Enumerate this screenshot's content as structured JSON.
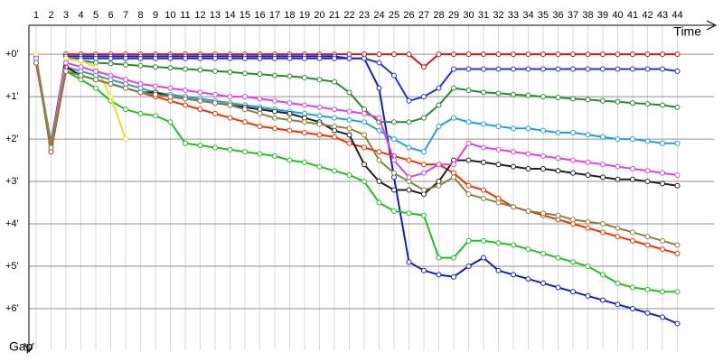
{
  "chart_data": {
    "type": "line",
    "x_label": "Time",
    "y_label": "Gap",
    "categories": [
      "1",
      "2",
      "3",
      "4",
      "5",
      "6",
      "7",
      "8",
      "9",
      "10",
      "11",
      "12",
      "13",
      "14",
      "15",
      "16",
      "17",
      "18",
      "19",
      "20",
      "21",
      "22",
      "23",
      "24",
      "25",
      "26",
      "27",
      "28",
      "29",
      "30",
      "31",
      "32",
      "33",
      "34",
      "35",
      "36",
      "37",
      "38",
      "39",
      "40",
      "41",
      "42",
      "43",
      "44"
    ],
    "ylim": [
      -0.3,
      7.0
    ],
    "yticks": [
      {
        "value": 0,
        "label": "+0'"
      },
      {
        "value": 1,
        "label": "+1'"
      },
      {
        "value": 2,
        "label": "+2'"
      },
      {
        "value": 3,
        "label": "+3'"
      },
      {
        "value": 4,
        "label": "+4'"
      },
      {
        "value": 5,
        "label": "+5'"
      },
      {
        "value": 6,
        "label": "+6'"
      }
    ],
    "grid": true,
    "series": [
      {
        "color": "#e01010",
        "values": [
          0.1,
          2.3,
          0,
          0,
          0,
          0,
          0,
          0,
          0,
          0,
          0,
          0,
          0,
          0,
          0,
          0,
          0,
          0,
          0,
          0,
          0,
          0,
          0,
          0,
          0,
          0,
          0.3,
          0,
          0,
          0,
          0,
          0,
          0,
          0,
          0,
          0,
          0,
          0,
          0,
          0,
          0,
          0,
          0,
          0
        ]
      },
      {
        "color": "#1020c0",
        "values": [
          0.2,
          2.1,
          0.05,
          0.05,
          0.05,
          0.05,
          0.05,
          0.05,
          0.05,
          0.05,
          0.05,
          0.05,
          0.05,
          0.05,
          0.05,
          0.05,
          0.05,
          0.05,
          0.05,
          0.05,
          0.05,
          0.1,
          0.1,
          0.8,
          2.9,
          4.9,
          5.1,
          5.2,
          5.25,
          5.0,
          4.8,
          5.1,
          5.2,
          5.3,
          5.4,
          5.5,
          5.6,
          5.7,
          5.8,
          5.9,
          6.0,
          6.1,
          6.2,
          6.35
        ]
      },
      {
        "color": "#2030e0",
        "values": [
          0.2,
          2.1,
          0.1,
          0.1,
          0.1,
          0.1,
          0.1,
          0.1,
          0.1,
          0.1,
          0.1,
          0.1,
          0.1,
          0.1,
          0.1,
          0.1,
          0.1,
          0.1,
          0.1,
          0.1,
          0.1,
          0.1,
          0.1,
          0.2,
          0.5,
          1.1,
          1.0,
          0.8,
          0.35,
          0.35,
          0.35,
          0.35,
          0.35,
          0.35,
          0.35,
          0.35,
          0.35,
          0.35,
          0.35,
          0.35,
          0.35,
          0.35,
          0.35,
          0.4
        ]
      },
      {
        "color": "#2a8a2a",
        "values": [
          0.1,
          2.2,
          0.1,
          0.15,
          0.2,
          0.22,
          0.25,
          0.27,
          0.3,
          0.32,
          0.35,
          0.37,
          0.4,
          0.42,
          0.45,
          0.47,
          0.5,
          0.52,
          0.55,
          0.6,
          0.65,
          0.9,
          1.3,
          1.6,
          1.6,
          1.6,
          1.5,
          1.2,
          0.8,
          0.85,
          0.9,
          0.92,
          0.95,
          0.97,
          1.0,
          1.02,
          1.05,
          1.07,
          1.1,
          1.12,
          1.15,
          1.17,
          1.2,
          1.25
        ]
      },
      {
        "color": "#20c020",
        "values": [
          0.05,
          2.1,
          0.4,
          0.6,
          0.8,
          1.1,
          1.3,
          1.4,
          1.45,
          1.6,
          2.1,
          2.15,
          2.2,
          2.25,
          2.3,
          2.35,
          2.4,
          2.5,
          2.55,
          2.65,
          2.75,
          2.85,
          3.0,
          3.5,
          3.7,
          3.75,
          3.8,
          4.8,
          4.8,
          4.4,
          4.4,
          4.45,
          4.5,
          4.6,
          4.7,
          4.8,
          4.9,
          5.0,
          5.2,
          5.4,
          5.5,
          5.55,
          5.6,
          5.6
        ]
      },
      {
        "color": "#f03000",
        "values": [
          0.1,
          2.3,
          0.4,
          0.5,
          0.6,
          0.7,
          0.8,
          0.9,
          1.0,
          1.1,
          1.2,
          1.3,
          1.4,
          1.5,
          1.6,
          1.7,
          1.75,
          1.8,
          1.85,
          1.9,
          1.95,
          2.1,
          2.2,
          2.3,
          2.4,
          2.5,
          2.6,
          2.6,
          2.8,
          3.1,
          3.2,
          3.4,
          3.6,
          3.7,
          3.8,
          3.9,
          4.0,
          4.1,
          4.2,
          4.3,
          4.4,
          4.5,
          4.6,
          4.7
        ]
      },
      {
        "color": "#e8e020",
        "values": [
          0,
          2.2,
          0.1,
          0.15,
          0.3,
          1.0,
          2.0,
          null,
          null,
          null,
          null,
          null,
          null,
          null,
          null,
          null,
          null,
          null,
          null,
          null,
          null,
          null,
          null,
          null,
          null,
          null,
          null,
          null,
          null,
          null,
          null,
          null,
          null,
          null,
          null,
          null,
          null,
          null,
          null,
          null,
          null,
          null,
          null,
          null
        ]
      },
      {
        "color": "#1ea0e0",
        "values": [
          0.1,
          2.2,
          0.3,
          0.4,
          0.5,
          0.6,
          0.7,
          0.8,
          0.9,
          0.95,
          1.0,
          1.05,
          1.1,
          1.15,
          1.2,
          1.25,
          1.3,
          1.35,
          1.4,
          1.45,
          1.5,
          1.55,
          1.6,
          1.8,
          2.0,
          2.2,
          2.3,
          1.7,
          1.5,
          1.6,
          1.65,
          1.7,
          1.75,
          1.75,
          1.8,
          1.85,
          1.85,
          1.9,
          1.95,
          2.0,
          2.0,
          2.05,
          2.1,
          2.1
        ]
      },
      {
        "color": "#202020",
        "values": [
          0.2,
          2.2,
          0.3,
          0.5,
          0.6,
          0.7,
          0.8,
          0.9,
          0.9,
          1.0,
          1.05,
          1.1,
          1.15,
          1.2,
          1.25,
          1.3,
          1.35,
          1.4,
          1.5,
          1.6,
          1.8,
          1.9,
          2.6,
          3.0,
          3.2,
          3.2,
          3.3,
          3.0,
          2.5,
          2.5,
          2.55,
          2.6,
          2.65,
          2.7,
          2.7,
          2.75,
          2.8,
          2.85,
          2.9,
          2.95,
          2.95,
          3.0,
          3.05,
          3.1
        ]
      },
      {
        "color": "#e040e0",
        "values": [
          0.1,
          2.2,
          0.2,
          0.3,
          0.4,
          0.5,
          0.6,
          0.7,
          0.75,
          0.8,
          0.85,
          0.9,
          0.95,
          1.0,
          1.0,
          1.05,
          1.1,
          1.15,
          1.2,
          1.25,
          1.3,
          1.35,
          1.4,
          1.5,
          2.5,
          2.9,
          2.8,
          2.6,
          2.6,
          2.1,
          2.2,
          2.25,
          2.3,
          2.35,
          2.4,
          2.45,
          2.5,
          2.55,
          2.6,
          2.65,
          2.7,
          2.75,
          2.8,
          2.85
        ]
      },
      {
        "color": "#8a8040",
        "values": [
          0.2,
          2.2,
          0.4,
          0.5,
          0.6,
          0.7,
          0.8,
          0.9,
          0.95,
          1.0,
          1.05,
          1.1,
          1.15,
          1.2,
          1.3,
          1.4,
          1.5,
          1.55,
          1.6,
          1.65,
          1.7,
          1.75,
          1.9,
          2.5,
          2.8,
          3.0,
          3.2,
          3.1,
          2.9,
          3.3,
          3.4,
          3.5,
          3.6,
          3.7,
          3.75,
          3.8,
          3.9,
          3.95,
          4.0,
          4.1,
          4.2,
          4.3,
          4.4,
          4.5
        ]
      }
    ]
  }
}
